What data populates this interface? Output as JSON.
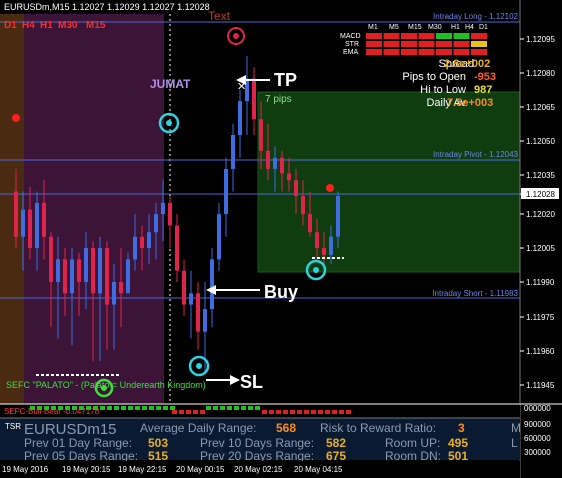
{
  "header": {
    "symbol_info": "EURUSDm,M15  1.12027 1.12029 1.12027 1.12028",
    "timeframes": [
      "D1",
      "H4",
      "H1",
      "M30",
      "M15"
    ]
  },
  "colors": {
    "bull": "#3d6de0",
    "bear": "#e0234a",
    "purple_zone": "#3b1438",
    "green_zone": "#0f3d10",
    "level_line": "#4a6ad8",
    "accent_orange": "#ff8a1a"
  },
  "annotations": {
    "text_label": "Text",
    "jumat": "JUMAT",
    "tp": "TP",
    "buy": "Buy",
    "sl": "SL",
    "pips": "7 pips",
    "intraday_long": "Intraday Long - 1.12102",
    "intraday_pivot": "Intraday Pivot - 1.12043",
    "intraday_short": "Intraday Short - 1.11983",
    "sefc_palato": "SEFC \"PALATO\" - (Palato = Underearth Kingdom)",
    "sefc_bull_bear": "SEFC-Bull-Bear -0.047178"
  },
  "indicator_table": {
    "columns": [
      "M1",
      "M5",
      "M15",
      "M30",
      "H1",
      "H4",
      "D1"
    ],
    "rows": [
      "MACD",
      "STR",
      "EMA"
    ]
  },
  "info_panel": {
    "rows": [
      {
        "label": "Spread",
        "value": "2.8e+002"
      },
      {
        "label": "Pips to Open",
        "value": "-953"
      },
      {
        "label": "Hi to Low",
        "value": "987"
      },
      {
        "label": "Daily Av",
        "value": "7.5e+003"
      }
    ]
  },
  "price_axis": {
    "labels": [
      "1.12095",
      "1.12080",
      "1.12065",
      "1.12050",
      "1.12035",
      "1.12028",
      "1.12020",
      "1.12005",
      "1.11990",
      "1.11975",
      "1.11960",
      "1.11945"
    ],
    "current": "1.12028"
  },
  "sub_axis": {
    "labels": [
      "000000",
      "900000",
      "600000",
      "300000"
    ]
  },
  "time_axis": {
    "labels": [
      "19 May 2016",
      "19 May 20:15",
      "19 May 22:15",
      "20 May 00:15",
      "20 May 02:15",
      "20 May 04:15"
    ]
  },
  "bottom_panel": {
    "tsr": "TSR",
    "symbol": "EURUSDm15",
    "avg_label": "Average Daily Range:",
    "avg_value": "568",
    "rr_label": "Risk to Reward Ratio:",
    "rr_value": "3",
    "m_char": "M",
    "prev01_label": "Prev 01 Day Range:",
    "prev01_value": "503",
    "prev10_label": "Prev 10 Days Range:",
    "prev10_value": "582",
    "room_up_label": "Room UP:",
    "room_up_value": "495",
    "l_char": "L",
    "prev05_label": "Prev 05 Days Range:",
    "prev05_value": "515",
    "prev20_label": "Prev 20 Days Range:",
    "prev20_value": "675",
    "room_dn_label": "Room DN:",
    "room_dn_value": "501"
  },
  "chart_data": {
    "type": "candlestick",
    "title": "EURUSDm,M15",
    "ylim": [
      1.1194,
      1.12105
    ],
    "candles": [
      {
        "o": 1.1203,
        "h": 1.1204,
        "l": 1.12005,
        "c": 1.1201
      },
      {
        "o": 1.1201,
        "h": 1.1203,
        "l": 1.11995,
        "c": 1.12022
      },
      {
        "o": 1.12022,
        "h": 1.12032,
        "l": 1.12,
        "c": 1.12005
      },
      {
        "o": 1.12005,
        "h": 1.1203,
        "l": 1.11995,
        "c": 1.12025
      },
      {
        "o": 1.12025,
        "h": 1.12035,
        "l": 1.12,
        "c": 1.1201
      },
      {
        "o": 1.1201,
        "h": 1.12012,
        "l": 1.1197,
        "c": 1.1199
      },
      {
        "o": 1.1199,
        "h": 1.1201,
        "l": 1.11965,
        "c": 1.12
      },
      {
        "o": 1.12,
        "h": 1.12005,
        "l": 1.11975,
        "c": 1.11985
      },
      {
        "o": 1.11985,
        "h": 1.12005,
        "l": 1.11962,
        "c": 1.12
      },
      {
        "o": 1.12,
        "h": 1.12003,
        "l": 1.11975,
        "c": 1.1199
      },
      {
        "o": 1.1199,
        "h": 1.12012,
        "l": 1.11978,
        "c": 1.12005
      },
      {
        "o": 1.12005,
        "h": 1.12008,
        "l": 1.11955,
        "c": 1.11985
      },
      {
        "o": 1.11985,
        "h": 1.1201,
        "l": 1.11955,
        "c": 1.12005
      },
      {
        "o": 1.12005,
        "h": 1.12008,
        "l": 1.1196,
        "c": 1.1198
      },
      {
        "o": 1.1198,
        "h": 1.11998,
        "l": 1.1196,
        "c": 1.1199
      },
      {
        "o": 1.1199,
        "h": 1.12005,
        "l": 1.1197,
        "c": 1.11985
      },
      {
        "o": 1.11985,
        "h": 1.12003,
        "l": 1.11985,
        "c": 1.12
      },
      {
        "o": 1.12,
        "h": 1.1202,
        "l": 1.11995,
        "c": 1.1201
      },
      {
        "o": 1.1201,
        "h": 1.12015,
        "l": 1.11995,
        "c": 1.12005
      },
      {
        "o": 1.12005,
        "h": 1.1202,
        "l": 1.11998,
        "c": 1.12012
      },
      {
        "o": 1.12012,
        "h": 1.12025,
        "l": 1.12,
        "c": 1.1202
      },
      {
        "o": 1.1202,
        "h": 1.12035,
        "l": 1.12008,
        "c": 1.12025
      },
      {
        "o": 1.12025,
        "h": 1.12028,
        "l": 1.12005,
        "c": 1.12015
      },
      {
        "o": 1.12015,
        "h": 1.1202,
        "l": 1.1199,
        "c": 1.11995
      },
      {
        "o": 1.11995,
        "h": 1.12,
        "l": 1.11975,
        "c": 1.1198
      },
      {
        "o": 1.1198,
        "h": 1.11995,
        "l": 1.11965,
        "c": 1.11985
      },
      {
        "o": 1.11985,
        "h": 1.1199,
        "l": 1.1196,
        "c": 1.11968
      },
      {
        "o": 1.11968,
        "h": 1.1199,
        "l": 1.1195,
        "c": 1.11978
      },
      {
        "o": 1.11978,
        "h": 1.12005,
        "l": 1.1197,
        "c": 1.12
      },
      {
        "o": 1.12,
        "h": 1.12025,
        "l": 1.11995,
        "c": 1.1202
      },
      {
        "o": 1.1202,
        "h": 1.12045,
        "l": 1.1201,
        "c": 1.1204
      },
      {
        "o": 1.1204,
        "h": 1.1206,
        "l": 1.1203,
        "c": 1.12055
      },
      {
        "o": 1.12055,
        "h": 1.12075,
        "l": 1.12045,
        "c": 1.1207
      },
      {
        "o": 1.1207,
        "h": 1.1209,
        "l": 1.12055,
        "c": 1.1208
      },
      {
        "o": 1.1208,
        "h": 1.12085,
        "l": 1.12055,
        "c": 1.12062
      },
      {
        "o": 1.12062,
        "h": 1.1207,
        "l": 1.1204,
        "c": 1.12048
      },
      {
        "o": 1.12048,
        "h": 1.1206,
        "l": 1.12035,
        "c": 1.1204
      },
      {
        "o": 1.1204,
        "h": 1.1205,
        "l": 1.1203,
        "c": 1.12045
      },
      {
        "o": 1.12045,
        "h": 1.12048,
        "l": 1.1203,
        "c": 1.12038
      },
      {
        "o": 1.12038,
        "h": 1.12045,
        "l": 1.1203,
        "c": 1.12035
      },
      {
        "o": 1.12035,
        "h": 1.1204,
        "l": 1.1202,
        "c": 1.12028
      },
      {
        "o": 1.12028,
        "h": 1.12035,
        "l": 1.12015,
        "c": 1.1202
      },
      {
        "o": 1.1202,
        "h": 1.1203,
        "l": 1.1201,
        "c": 1.12012
      },
      {
        "o": 1.12012,
        "h": 1.12018,
        "l": 1.12,
        "c": 1.12005
      },
      {
        "o": 1.12005,
        "h": 1.12012,
        "l": 1.11998,
        "c": 1.12002
      },
      {
        "o": 1.12002,
        "h": 1.12015,
        "l": 1.11998,
        "c": 1.1201
      },
      {
        "o": 1.1201,
        "h": 1.1203,
        "l": 1.12005,
        "c": 1.12028
      }
    ]
  }
}
